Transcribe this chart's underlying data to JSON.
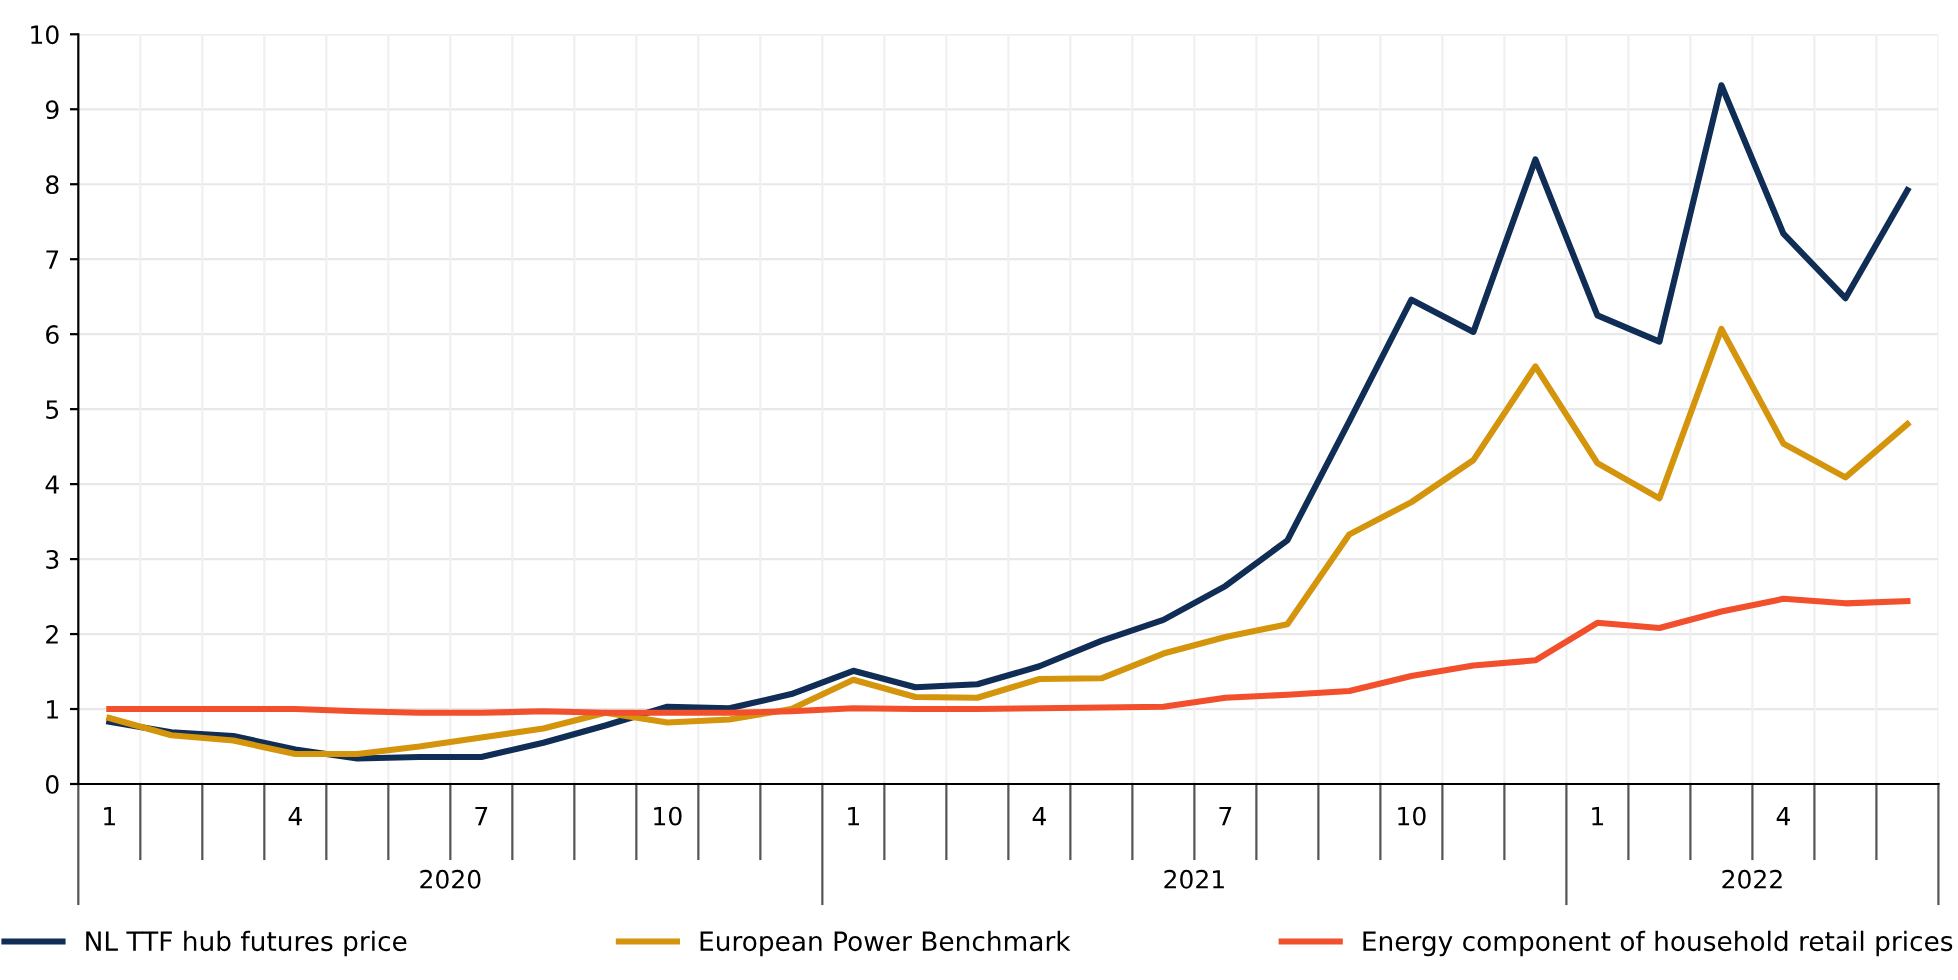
{
  "chart_data": {
    "type": "line",
    "categories": [
      "1",
      null,
      null,
      "4",
      null,
      null,
      "7",
      null,
      null,
      "10",
      null,
      null,
      "1",
      null,
      null,
      "4",
      null,
      null,
      "7",
      null,
      null,
      "10",
      null,
      null,
      "1",
      null,
      null,
      "4",
      null,
      null
    ],
    "series": [
      {
        "name": "NL TTF hub futures price",
        "color": "#0f2d55",
        "values": [
          0.83,
          0.69,
          0.64,
          0.46,
          0.34,
          0.36,
          0.36,
          0.55,
          0.78,
          1.03,
          1.01,
          1.2,
          1.51,
          1.29,
          1.33,
          1.57,
          1.91,
          2.19,
          2.64,
          3.25,
          4.84,
          6.46,
          6.03,
          8.33,
          6.25,
          5.9,
          9.32,
          7.34,
          6.48,
          7.92
        ]
      },
      {
        "name": "European Power Benchmark",
        "color": "#d4940c",
        "values": [
          0.88,
          0.65,
          0.58,
          0.4,
          0.4,
          0.5,
          0.62,
          0.74,
          0.95,
          0.82,
          0.86,
          1.0,
          1.39,
          1.16,
          1.15,
          1.4,
          1.41,
          1.74,
          1.96,
          2.13,
          3.33,
          3.76,
          4.32,
          5.57,
          4.28,
          3.81,
          6.07,
          4.54,
          4.09,
          4.8
        ]
      },
      {
        "name": "Energy component of household retail prices",
        "color": "#f2502d",
        "values": [
          1.0,
          1.0,
          1.0,
          1.0,
          0.97,
          0.95,
          0.95,
          0.97,
          0.95,
          0.95,
          0.95,
          0.97,
          1.01,
          1.0,
          1.0,
          1.01,
          1.02,
          1.03,
          1.15,
          1.19,
          1.24,
          1.44,
          1.58,
          1.65,
          2.15,
          2.08,
          2.3,
          2.47,
          2.41,
          2.44
        ]
      }
    ],
    "annotations": [
      "2020",
      "2021",
      "2022"
    ],
    "ylim": [
      0,
      10
    ],
    "yticks": [
      0,
      1,
      2,
      3,
      4,
      5,
      6,
      7,
      8,
      9,
      10
    ],
    "grid": true,
    "legend": "bottom",
    "marker": "none",
    "line_style": "solid"
  }
}
